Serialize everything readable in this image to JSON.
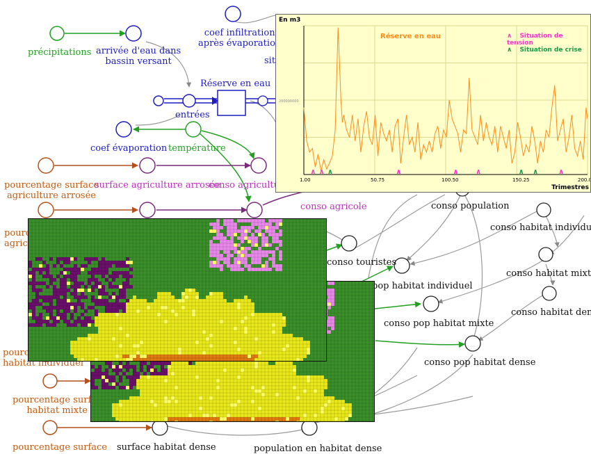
{
  "labels": {
    "precipitations": "précipitations",
    "arrivee_eau": "arrivée d'eau dans\nbassin versant",
    "coef_infiltration": "coef infiltration\naprès évaporation",
    "coef_infiltration_cut": "situ",
    "reserve_eau": "Réserve en eau",
    "entrees": "entrées",
    "coef_evaporation": "coef évaporation",
    "temperature": "température",
    "pourcentage_surface_agriculture_arrosee": "pourcentage surface\nagriculture arrosée",
    "surface_agriculture_arrosee": "surface agriculture arrosée",
    "conso_agriculture": "conso agricultur",
    "conso_agricole": "conso agricole",
    "pourcentage_agri_cut": "pource\nagric",
    "conso_population": "conso population",
    "conso_habitat_individuel": "conso habitat individuel",
    "conso_touristes": "conso touristes",
    "conso_habitat_mixte": "conso habitat mixte",
    "pop_habitat_individuel": "pop habitat individuel",
    "conso_habitat_dense": "conso habitat dense",
    "conso_pop_habitat_mixte": "conso pop habitat mixte",
    "conso_pop_habitat_dense": "conso pop habitat dense",
    "pourcentage_habitat_individuel_cut": "pourc\nhabitat individuel",
    "pourcentage_surface_habitat_mixte": "pourcentage surfac\nhabitat mixte",
    "pourcentage_surface_bottom": "pourcentage surface",
    "surface_habitat_dense": "surface habitat dense",
    "population_habitat_dense": "population en habitat dense"
  },
  "chart": {
    "y_title": "En m3",
    "x_title": "Trimestres",
    "series_title": "Réserve en eau",
    "legend_tension": "Situation de tension",
    "legend_crise": "Situation de crise",
    "y_tick_label": "200000000",
    "x_ticks": [
      "1.00",
      "50.75",
      "100.50",
      "150.25",
      "200.00"
    ],
    "colors": {
      "series": "#ff8c1a",
      "tension": "#ff33cc",
      "crise": "#1a9a4a",
      "background": "#ffffcc",
      "grid": "#d8d890"
    }
  },
  "chart_data": {
    "type": "line",
    "title": "Réserve en eau",
    "xlabel": "Trimestres",
    "ylabel": "En m3",
    "xlim": [
      1,
      200
    ],
    "ylim": [
      0,
      400000000
    ],
    "series": [
      {
        "name": "Réserve en eau",
        "x": [
          1,
          3,
          5,
          7,
          9,
          11,
          13,
          15,
          17,
          19,
          21,
          23,
          25,
          26,
          27,
          28,
          29,
          31,
          33,
          35,
          37,
          39,
          41,
          43,
          45,
          47,
          49,
          51,
          53,
          55,
          57,
          59,
          61,
          63,
          65,
          67,
          69,
          71,
          73,
          75,
          77,
          79,
          81,
          83,
          85,
          87,
          89,
          91,
          93,
          95,
          97,
          99,
          101,
          103,
          105,
          107,
          109,
          111,
          113,
          115,
          117,
          119,
          121,
          123,
          125,
          127,
          129,
          131,
          133,
          135,
          137,
          139,
          141,
          143,
          145,
          147,
          149,
          151,
          153,
          155,
          157,
          159,
          161,
          163,
          165,
          167,
          169,
          171,
          173,
          175,
          177,
          179,
          181,
          183,
          185,
          187,
          189,
          191,
          193,
          195,
          197,
          199,
          200
        ],
        "y": [
          180000000,
          90000000,
          60000000,
          70000000,
          20000000,
          55000000,
          10000000,
          40000000,
          15000000,
          30000000,
          50000000,
          120000000,
          395000000,
          300000000,
          200000000,
          140000000,
          160000000,
          120000000,
          100000000,
          160000000,
          90000000,
          150000000,
          60000000,
          130000000,
          170000000,
          100000000,
          80000000,
          160000000,
          50000000,
          140000000,
          110000000,
          90000000,
          120000000,
          60000000,
          130000000,
          150000000,
          30000000,
          100000000,
          160000000,
          80000000,
          100000000,
          60000000,
          140000000,
          40000000,
          80000000,
          60000000,
          90000000,
          60000000,
          110000000,
          130000000,
          70000000,
          120000000,
          100000000,
          200000000,
          150000000,
          130000000,
          110000000,
          60000000,
          120000000,
          110000000,
          260000000,
          120000000,
          100000000,
          80000000,
          160000000,
          90000000,
          140000000,
          100000000,
          80000000,
          130000000,
          60000000,
          130000000,
          100000000,
          70000000,
          120000000,
          30000000,
          60000000,
          140000000,
          100000000,
          50000000,
          80000000,
          60000000,
          130000000,
          90000000,
          30000000,
          90000000,
          60000000,
          120000000,
          100000000,
          180000000,
          240000000,
          90000000,
          120000000,
          150000000,
          60000000,
          100000000,
          160000000,
          70000000,
          50000000,
          90000000,
          40000000,
          180000000,
          150000000
        ]
      }
    ],
    "markers": {
      "tension": [
        7,
        13,
        67,
        107,
        123,
        181
      ],
      "crise": [
        19,
        153,
        163
      ]
    }
  }
}
